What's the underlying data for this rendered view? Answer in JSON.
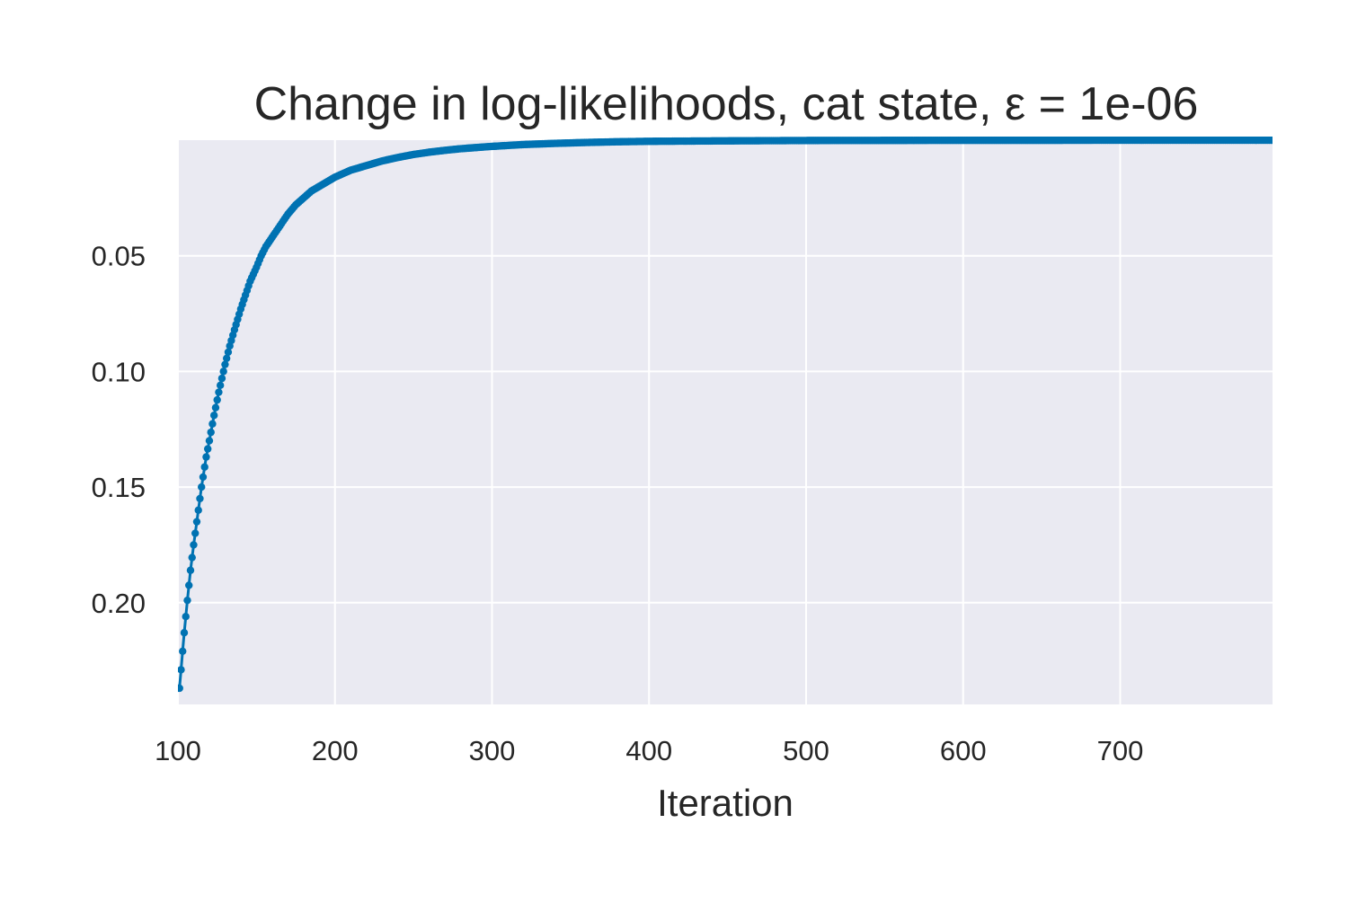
{
  "colors": {
    "plot_background": "#eaeaf2",
    "grid": "#ffffff",
    "series": "#0072b2",
    "text": "#262626"
  },
  "chart_data": {
    "type": "scatter",
    "title": "Change in log-likelihoods, cat state, ε = 1e-06",
    "xlabel": "Iteration",
    "ylabel": "",
    "xlim": [
      100,
      797
    ],
    "ylim": [
      0.0,
      0.244
    ],
    "y_inverted": true,
    "grid": true,
    "legend": "none",
    "x_ticks": [
      100,
      200,
      300,
      400,
      500,
      600,
      700
    ],
    "x_tick_labels": [
      "100",
      "200",
      "300",
      "400",
      "500",
      "600",
      "700"
    ],
    "y_ticks": [
      0.05,
      0.1,
      0.15,
      0.2
    ],
    "y_tick_labels": [
      "0.05",
      "0.10",
      "0.15",
      "0.20"
    ],
    "series": [
      {
        "marker": "dot",
        "x": [
          101,
          102,
          103,
          104,
          106,
          108,
          110,
          112,
          115,
          118,
          120,
          123,
          126,
          130,
          133,
          136,
          140,
          143,
          146,
          150,
          153,
          156,
          160,
          165,
          170,
          175,
          180,
          185,
          190,
          200,
          210,
          220,
          230,
          240,
          250,
          260,
          270,
          280,
          300,
          320,
          340,
          360,
          380,
          400,
          450,
          500,
          550,
          600,
          650,
          700,
          750,
          797
        ],
        "y": [
          0.237,
          0.229,
          0.221,
          0.213,
          0.199,
          0.186,
          0.175,
          0.165,
          0.15,
          0.137,
          0.13,
          0.119,
          0.109,
          0.097,
          0.089,
          0.082,
          0.073,
          0.067,
          0.061,
          0.055,
          0.05,
          0.046,
          0.042,
          0.037,
          0.032,
          0.028,
          0.025,
          0.022,
          0.02,
          0.016,
          0.013,
          0.011,
          0.009,
          0.0075,
          0.0062,
          0.0052,
          0.0044,
          0.0037,
          0.0027,
          0.0019,
          0.0014,
          0.001,
          0.0007,
          0.0005,
          0.0003,
          0.00015,
          0.0001,
          7e-05,
          5e-05,
          3e-05,
          2e-05,
          1e-05
        ]
      }
    ]
  }
}
